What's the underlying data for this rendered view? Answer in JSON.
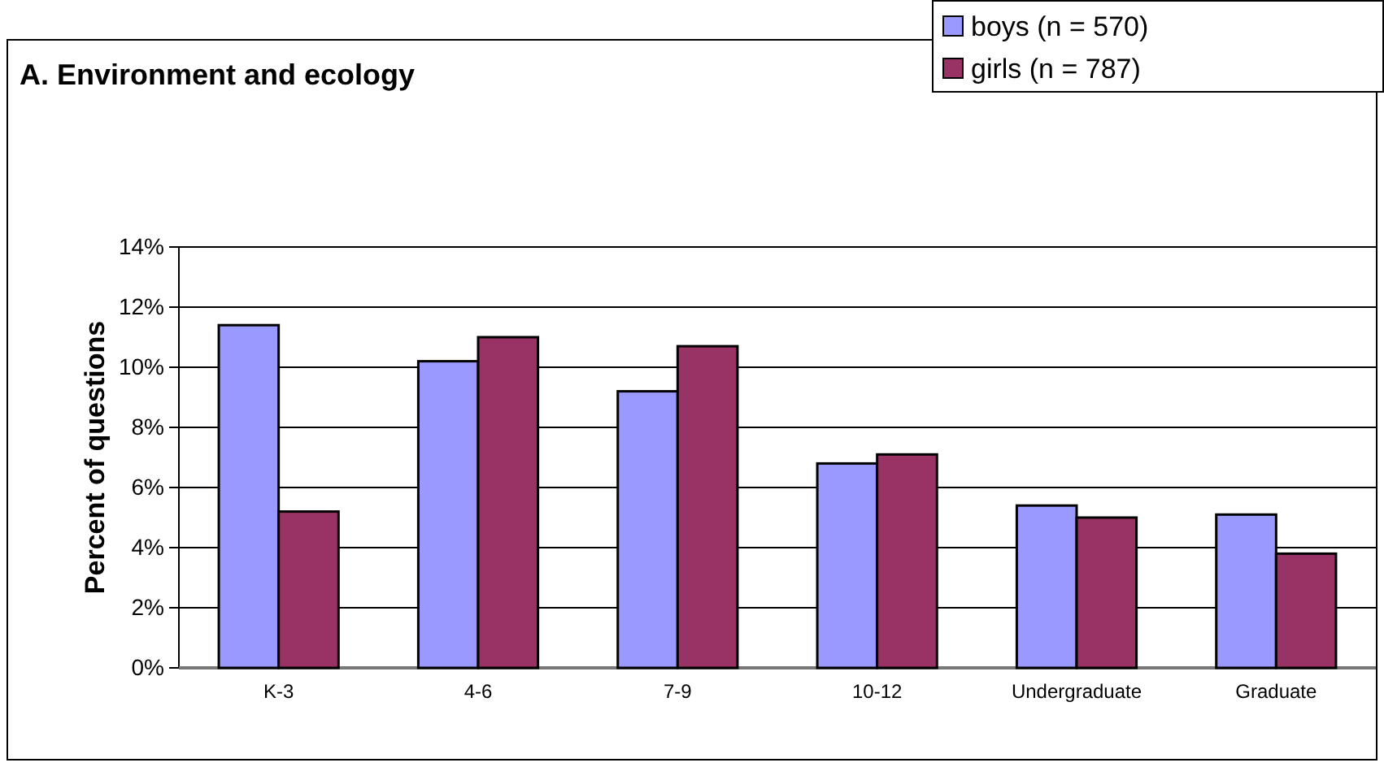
{
  "chart_data": {
    "type": "bar",
    "title": "A. Environment and ecology",
    "ylabel": "Percent of questions",
    "categories": [
      "K-3",
      "4-6",
      "7-9",
      "10-12",
      "Undergraduate",
      "Graduate"
    ],
    "series": [
      {
        "name": "boys (n = 570)",
        "color": "#9999ff",
        "values": [
          11.4,
          10.2,
          9.2,
          6.8,
          5.4,
          5.1
        ]
      },
      {
        "name": "girls (n = 787)",
        "color": "#993366",
        "values": [
          5.2,
          11.0,
          10.7,
          7.1,
          5.0,
          3.8
        ]
      }
    ],
    "ylim": [
      0,
      14
    ],
    "yticks": [
      {
        "value": 0,
        "label": "0%"
      },
      {
        "value": 2,
        "label": "2%"
      },
      {
        "value": 4,
        "label": "4%"
      },
      {
        "value": 6,
        "label": "6%"
      },
      {
        "value": 8,
        "label": "8%"
      },
      {
        "value": 10,
        "label": "10%"
      },
      {
        "value": 12,
        "label": "12%"
      },
      {
        "value": 14,
        "label": "14%"
      }
    ],
    "grid": "y",
    "legend": "top right"
  }
}
